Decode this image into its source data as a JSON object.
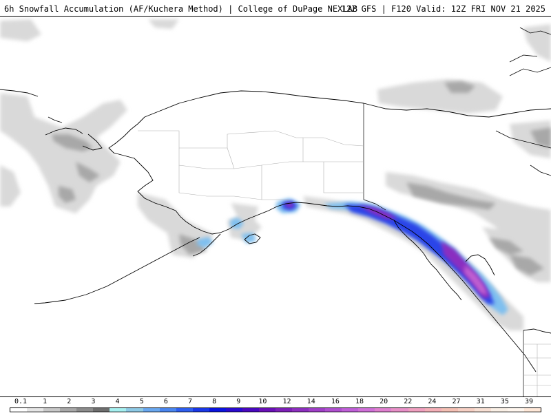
{
  "header": {
    "title_left": "6h Snowfall Accumulation (AF/Kuchera Method) | College of DuPage NEXLAB",
    "title_right": "12Z GFS | F120 Valid: 12Z FRI NOV 21 2025"
  },
  "legend": {
    "ticks": [
      "0.1",
      "1",
      "2",
      "3",
      "4",
      "5",
      "6",
      "7",
      "8",
      "9",
      "10",
      "12",
      "14",
      "16",
      "18",
      "20",
      "22",
      "24",
      "27",
      "31",
      "35",
      "39"
    ],
    "colors": [
      "#ffffff",
      "#e6e6e6",
      "#c8c8c8",
      "#a8a8a8",
      "#8c8c8c",
      "#6e6e6e",
      "#a6f0f0",
      "#8ecae6",
      "#6aa8f0",
      "#4a86f0",
      "#2f5ff0",
      "#1a38e8",
      "#0a14e0",
      "#2a0ad0",
      "#4a08c0",
      "#6a10b8",
      "#7e20b8",
      "#8e30c0",
      "#a040c8",
      "#b050d0",
      "#c060d8",
      "#d070d8",
      "#e080d0",
      "#e890c8",
      "#f0a0c0",
      "#f4b0b8",
      "#f4c0b4",
      "#f6d0c4",
      "#f8e0d4",
      "#faf0e6",
      "#fff6ee",
      "#ffe8d8"
    ]
  }
}
